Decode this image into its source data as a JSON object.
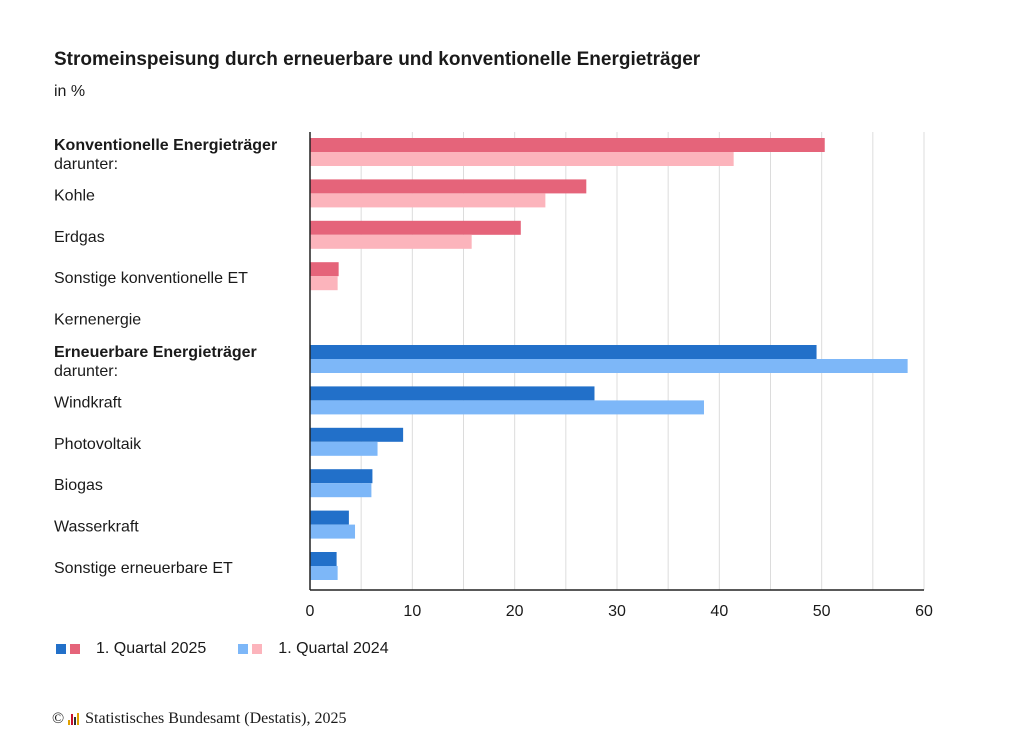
{
  "title": "Stromeinspeisung durch erneuerbare und konventionelle Energieträger",
  "subtitle": "in %",
  "colors": {
    "konv_2025": "#e5647a",
    "konv_2024": "#fcb4bc",
    "erneu_2025": "#2270c9",
    "erneu_2024": "#7db7f8",
    "grid": "#dcdcdc",
    "axis": "#222222"
  },
  "legend": {
    "series_2025": "1. Quartal 2025",
    "series_2024": "1. Quartal 2024"
  },
  "footer": {
    "copyright": "©",
    "source": "Statistisches Bundesamt (Destatis), 2025",
    "logo_icon": "destatis-logo-icon"
  },
  "chart_data": {
    "type": "bar",
    "orientation": "horizontal",
    "xlim": [
      0,
      60
    ],
    "xticks": [
      0,
      10,
      20,
      30,
      40,
      50,
      60
    ],
    "grid": true,
    "legend_position": "bottom-left",
    "categories": [
      {
        "label": "Konventionelle Energieträger",
        "sublabel": "darunter:",
        "bold": true,
        "group": "konv",
        "v2025": 50.3,
        "v2024": 41.4
      },
      {
        "label": "Kohle",
        "group": "konv",
        "v2025": 27.0,
        "v2024": 23.0
      },
      {
        "label": "Erdgas",
        "group": "konv",
        "v2025": 20.6,
        "v2024": 15.8
      },
      {
        "label": "Sonstige konventionelle ET",
        "group": "konv",
        "v2025": 2.8,
        "v2024": 2.7
      },
      {
        "label": "Kernenergie",
        "group": "konv",
        "v2025": 0,
        "v2024": 0
      },
      {
        "label": "Erneuerbare Energieträger",
        "sublabel": "darunter:",
        "bold": true,
        "group": "erneu",
        "v2025": 49.5,
        "v2024": 58.4
      },
      {
        "label": "Windkraft",
        "group": "erneu",
        "v2025": 27.8,
        "v2024": 38.5
      },
      {
        "label": "Photovoltaik",
        "group": "erneu",
        "v2025": 9.1,
        "v2024": 6.6
      },
      {
        "label": "Biogas",
        "group": "erneu",
        "v2025": 6.1,
        "v2024": 6.0
      },
      {
        "label": "Wasserkraft",
        "group": "erneu",
        "v2025": 3.8,
        "v2024": 4.4
      },
      {
        "label": "Sonstige erneuerbare ET",
        "group": "erneu",
        "v2025": 2.6,
        "v2024": 2.7
      }
    ]
  }
}
